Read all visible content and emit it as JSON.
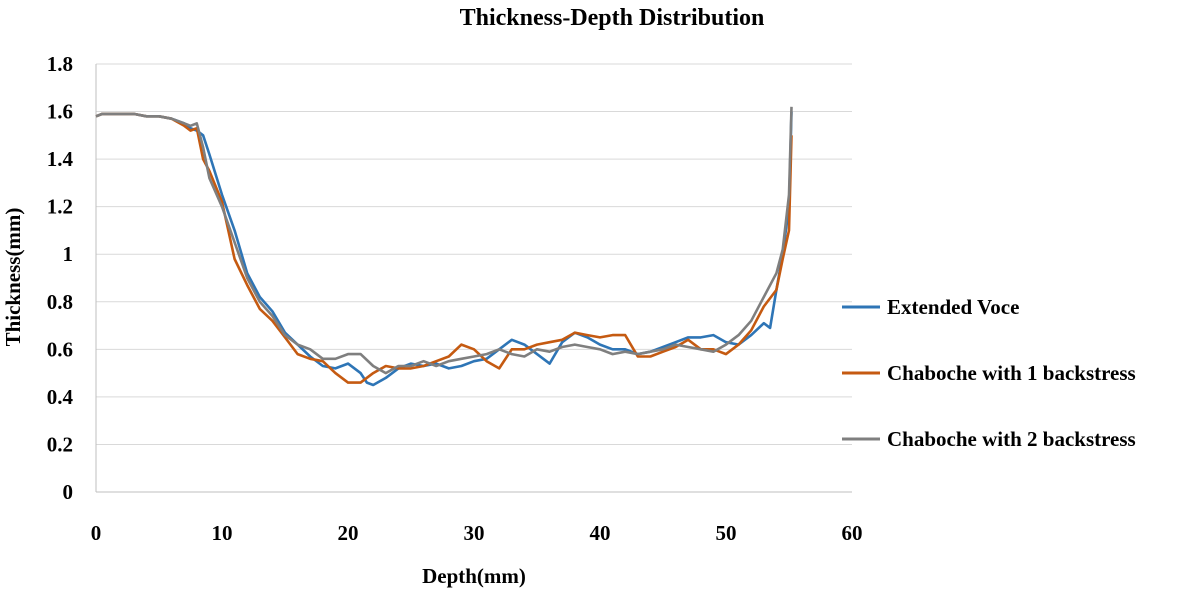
{
  "chart_data": {
    "type": "line",
    "title": "Thickness-Depth Distribution",
    "xlabel": "Depth(mm)",
    "ylabel": "Thickness(mm)",
    "xlim": [
      0,
      60
    ],
    "ylim": [
      0,
      1.8
    ],
    "x_ticks": [
      "0",
      "10",
      "20",
      "30",
      "40",
      "50",
      "60"
    ],
    "y_ticks": [
      "0",
      "0.2",
      "0.4",
      "0.6",
      "0.8",
      "1",
      "1.2",
      "1.4",
      "1.6",
      "1.8"
    ],
    "grid": "horizontal",
    "legend_position": "right",
    "series": [
      {
        "name": "Extended Voce",
        "color": "#2e75b6",
        "points": [
          [
            0,
            1.58
          ],
          [
            0.5,
            1.59
          ],
          [
            1,
            1.59
          ],
          [
            2,
            1.59
          ],
          [
            3,
            1.59
          ],
          [
            4,
            1.58
          ],
          [
            5,
            1.58
          ],
          [
            6,
            1.57
          ],
          [
            7,
            1.55
          ],
          [
            7.5,
            1.53
          ],
          [
            8,
            1.52
          ],
          [
            8.5,
            1.5
          ],
          [
            9,
            1.42
          ],
          [
            10,
            1.25
          ],
          [
            11,
            1.1
          ],
          [
            12,
            0.92
          ],
          [
            13,
            0.82
          ],
          [
            14,
            0.76
          ],
          [
            15,
            0.67
          ],
          [
            16,
            0.62
          ],
          [
            17,
            0.57
          ],
          [
            18,
            0.53
          ],
          [
            19,
            0.52
          ],
          [
            20,
            0.54
          ],
          [
            21,
            0.5
          ],
          [
            21.5,
            0.46
          ],
          [
            22,
            0.45
          ],
          [
            23,
            0.48
          ],
          [
            24,
            0.52
          ],
          [
            25,
            0.54
          ],
          [
            26,
            0.53
          ],
          [
            27,
            0.54
          ],
          [
            28,
            0.52
          ],
          [
            29,
            0.53
          ],
          [
            30,
            0.55
          ],
          [
            31,
            0.56
          ],
          [
            32,
            0.6
          ],
          [
            33,
            0.64
          ],
          [
            34,
            0.62
          ],
          [
            35,
            0.58
          ],
          [
            36,
            0.54
          ],
          [
            37,
            0.63
          ],
          [
            38,
            0.67
          ],
          [
            39,
            0.65
          ],
          [
            40,
            0.62
          ],
          [
            41,
            0.6
          ],
          [
            42,
            0.6
          ],
          [
            43,
            0.58
          ],
          [
            44,
            0.59
          ],
          [
            45,
            0.61
          ],
          [
            46,
            0.63
          ],
          [
            47,
            0.65
          ],
          [
            48,
            0.65
          ],
          [
            49,
            0.66
          ],
          [
            50,
            0.63
          ],
          [
            51,
            0.62
          ],
          [
            52,
            0.66
          ],
          [
            53,
            0.71
          ],
          [
            53.5,
            0.69
          ],
          [
            54,
            0.85
          ],
          [
            54.5,
            1.0
          ],
          [
            55,
            1.2
          ],
          [
            55.2,
            1.6
          ]
        ]
      },
      {
        "name": "Chaboche with 1 backstress",
        "color": "#c55a11",
        "points": [
          [
            0,
            1.58
          ],
          [
            0.5,
            1.59
          ],
          [
            1,
            1.59
          ],
          [
            2,
            1.59
          ],
          [
            3,
            1.59
          ],
          [
            4,
            1.58
          ],
          [
            5,
            1.58
          ],
          [
            6,
            1.57
          ],
          [
            7,
            1.54
          ],
          [
            7.5,
            1.52
          ],
          [
            8,
            1.53
          ],
          [
            8.5,
            1.4
          ],
          [
            9,
            1.35
          ],
          [
            10,
            1.22
          ],
          [
            11,
            0.98
          ],
          [
            12,
            0.87
          ],
          [
            13,
            0.77
          ],
          [
            14,
            0.72
          ],
          [
            15,
            0.65
          ],
          [
            16,
            0.58
          ],
          [
            17,
            0.56
          ],
          [
            18,
            0.55
          ],
          [
            19,
            0.5
          ],
          [
            20,
            0.46
          ],
          [
            21,
            0.46
          ],
          [
            22,
            0.5
          ],
          [
            23,
            0.53
          ],
          [
            24,
            0.52
          ],
          [
            25,
            0.52
          ],
          [
            26,
            0.53
          ],
          [
            27,
            0.55
          ],
          [
            28,
            0.57
          ],
          [
            29,
            0.62
          ],
          [
            30,
            0.6
          ],
          [
            31,
            0.55
          ],
          [
            32,
            0.52
          ],
          [
            33,
            0.6
          ],
          [
            34,
            0.6
          ],
          [
            35,
            0.62
          ],
          [
            36,
            0.63
          ],
          [
            37,
            0.64
          ],
          [
            38,
            0.67
          ],
          [
            39,
            0.66
          ],
          [
            40,
            0.65
          ],
          [
            41,
            0.66
          ],
          [
            42,
            0.66
          ],
          [
            43,
            0.57
          ],
          [
            44,
            0.57
          ],
          [
            45,
            0.59
          ],
          [
            46,
            0.61
          ],
          [
            47,
            0.64
          ],
          [
            48,
            0.6
          ],
          [
            49,
            0.6
          ],
          [
            50,
            0.58
          ],
          [
            51,
            0.62
          ],
          [
            52,
            0.68
          ],
          [
            53,
            0.78
          ],
          [
            54,
            0.85
          ],
          [
            54.5,
            0.98
          ],
          [
            55,
            1.1
          ],
          [
            55.2,
            1.5
          ]
        ]
      },
      {
        "name": "Chaboche with 2 backstress",
        "color": "#7f7f7f",
        "points": [
          [
            0,
            1.58
          ],
          [
            0.5,
            1.59
          ],
          [
            1,
            1.59
          ],
          [
            2,
            1.59
          ],
          [
            3,
            1.59
          ],
          [
            4,
            1.58
          ],
          [
            5,
            1.58
          ],
          [
            6,
            1.57
          ],
          [
            7,
            1.55
          ],
          [
            7.5,
            1.54
          ],
          [
            8,
            1.55
          ],
          [
            8.5,
            1.45
          ],
          [
            9,
            1.32
          ],
          [
            10,
            1.2
          ],
          [
            11,
            1.05
          ],
          [
            12,
            0.9
          ],
          [
            13,
            0.8
          ],
          [
            14,
            0.74
          ],
          [
            15,
            0.66
          ],
          [
            16,
            0.62
          ],
          [
            17,
            0.6
          ],
          [
            18,
            0.56
          ],
          [
            19,
            0.56
          ],
          [
            20,
            0.58
          ],
          [
            21,
            0.58
          ],
          [
            22,
            0.53
          ],
          [
            23,
            0.5
          ],
          [
            24,
            0.53
          ],
          [
            25,
            0.53
          ],
          [
            26,
            0.55
          ],
          [
            27,
            0.53
          ],
          [
            28,
            0.55
          ],
          [
            29,
            0.56
          ],
          [
            30,
            0.57
          ],
          [
            31,
            0.58
          ],
          [
            32,
            0.6
          ],
          [
            33,
            0.58
          ],
          [
            34,
            0.57
          ],
          [
            35,
            0.6
          ],
          [
            36,
            0.59
          ],
          [
            37,
            0.61
          ],
          [
            38,
            0.62
          ],
          [
            39,
            0.61
          ],
          [
            40,
            0.6
          ],
          [
            41,
            0.58
          ],
          [
            42,
            0.59
          ],
          [
            43,
            0.58
          ],
          [
            44,
            0.59
          ],
          [
            45,
            0.6
          ],
          [
            46,
            0.62
          ],
          [
            47,
            0.61
          ],
          [
            48,
            0.6
          ],
          [
            49,
            0.59
          ],
          [
            50,
            0.62
          ],
          [
            51,
            0.66
          ],
          [
            52,
            0.72
          ],
          [
            53,
            0.82
          ],
          [
            54,
            0.92
          ],
          [
            54.5,
            1.02
          ],
          [
            55,
            1.25
          ],
          [
            55.2,
            1.62
          ]
        ]
      }
    ]
  }
}
